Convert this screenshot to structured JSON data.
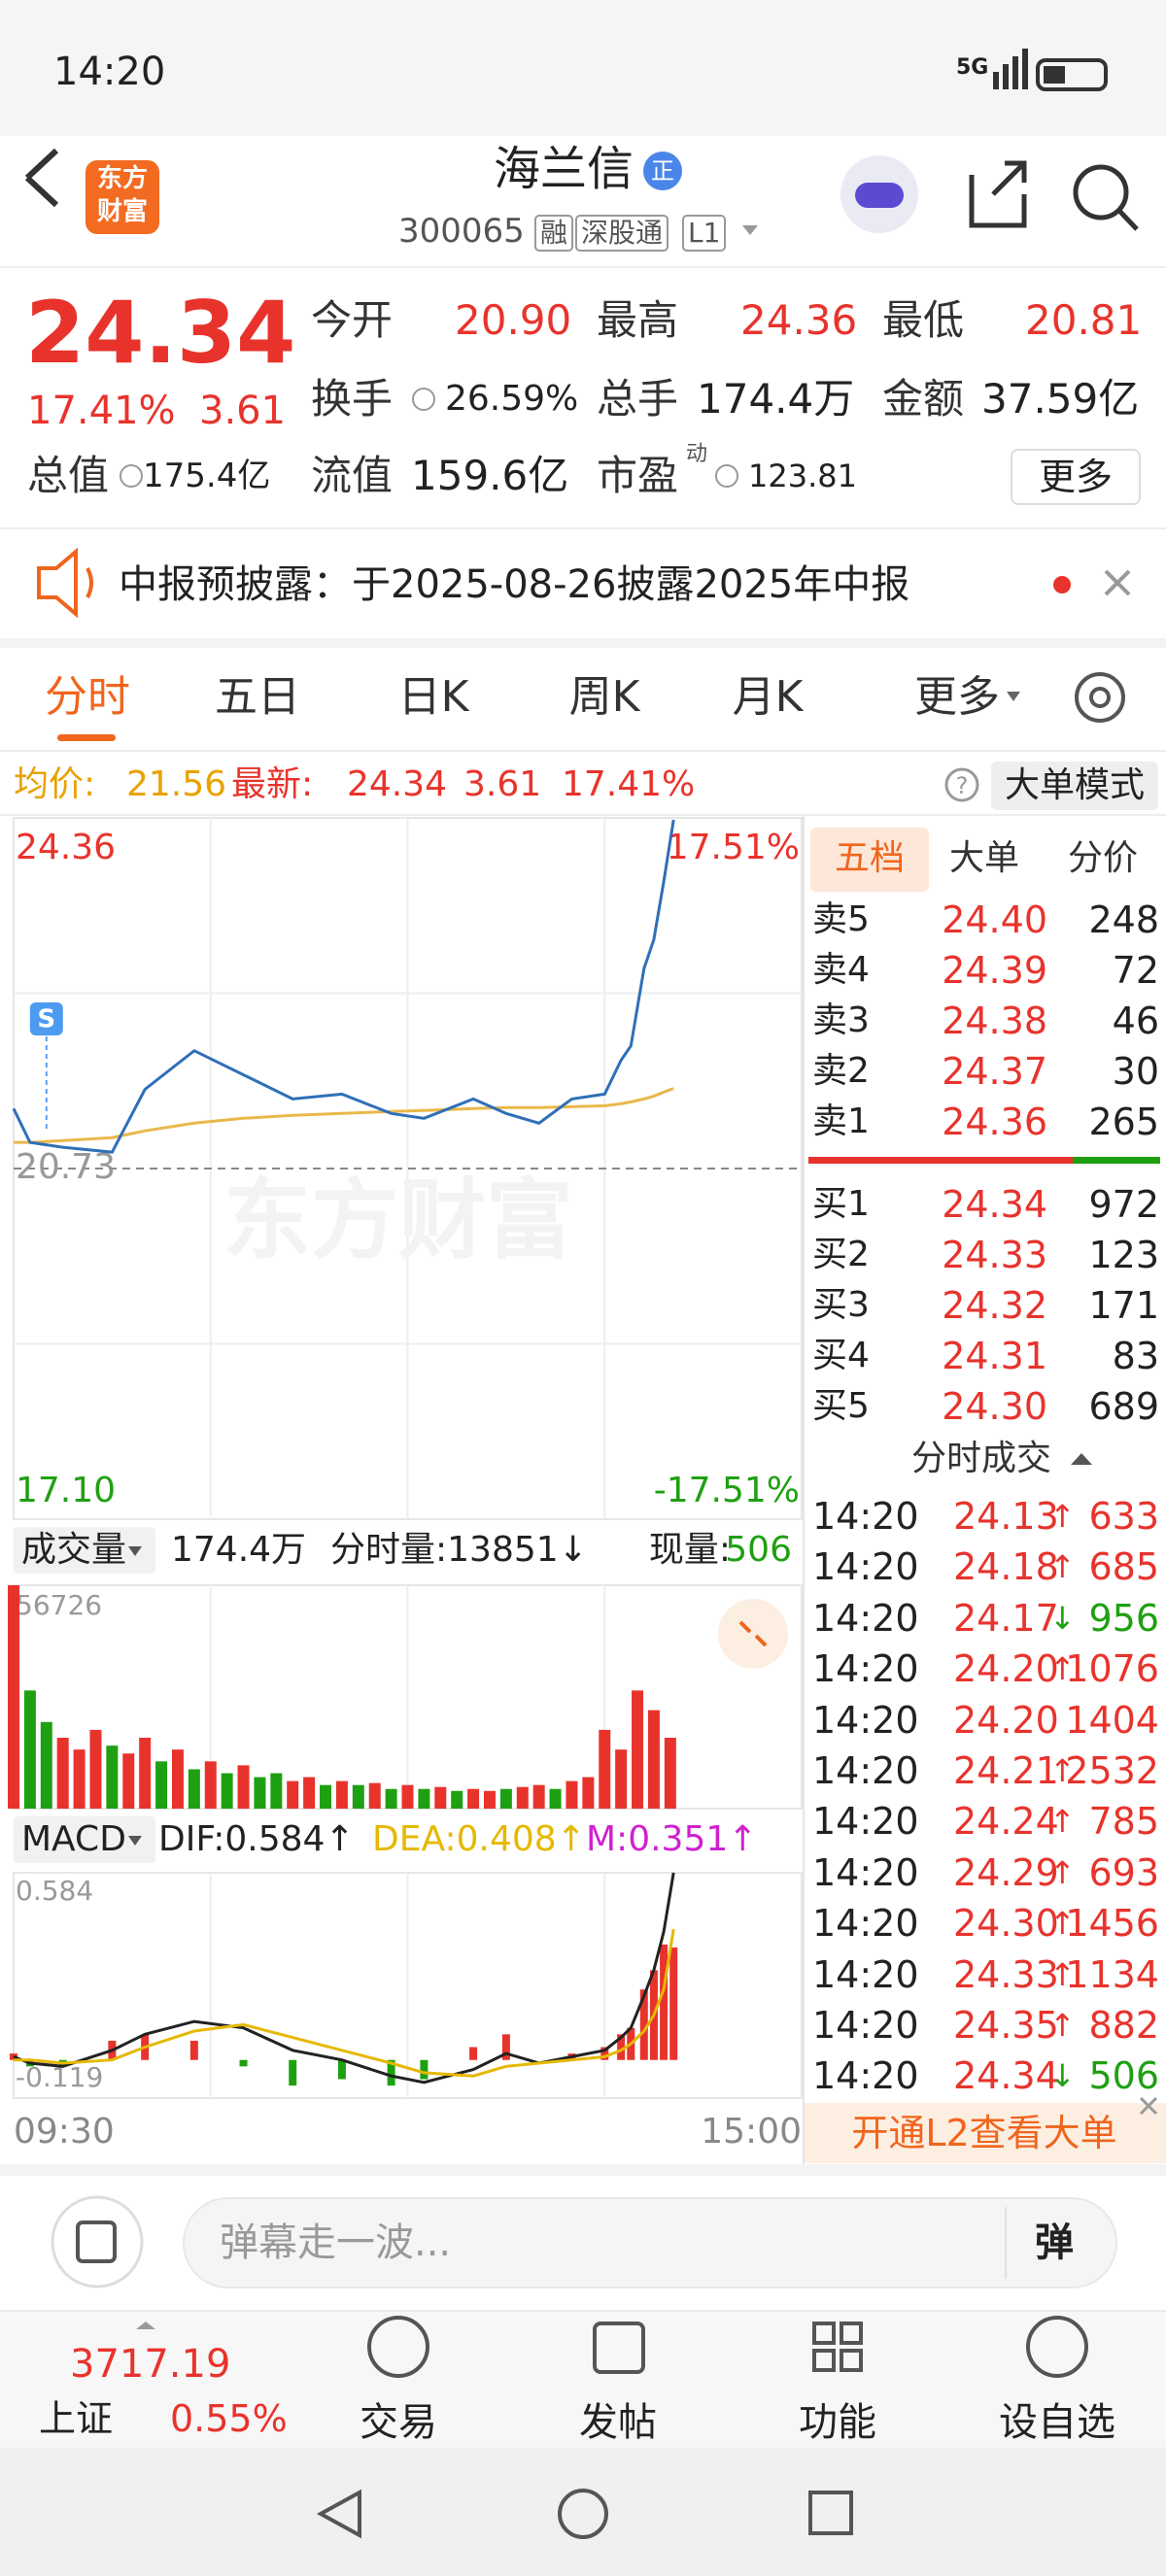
{
  "status_bar": {
    "time": "14:20",
    "network": "5G"
  },
  "header": {
    "logo": [
      "东方",
      "财富"
    ],
    "title": "海兰信",
    "title_badge": "正",
    "code": "300065",
    "badges": [
      "融",
      "深股通",
      "L1"
    ]
  },
  "quote": {
    "price": "24.34",
    "change_pct": "17.41%",
    "change": "3.61",
    "fields": [
      {
        "label": "今开",
        "value": "20.90"
      },
      {
        "label": "最高",
        "value": "24.36"
      },
      {
        "label": "最低",
        "value": "20.81"
      },
      {
        "label": "换手",
        "value": "26.59%"
      },
      {
        "label": "总手",
        "value": "174.4万"
      },
      {
        "label": "金额",
        "value": "37.59亿"
      },
      {
        "label": "总值",
        "value": "175.4亿"
      },
      {
        "label": "流值",
        "value": "159.6亿"
      },
      {
        "label": "市盈",
        "value": "123.81",
        "superscript": "动"
      }
    ],
    "more": "更多"
  },
  "notice": {
    "text": "中报预披露：于2025-08-26披露2025年中报"
  },
  "tabs": [
    "分时",
    "五日",
    "日K",
    "周K",
    "月K",
    "更多"
  ],
  "info_bar": {
    "avg_label": "均价:",
    "avg": "21.56",
    "latest_label": "最新:",
    "latest": "24.34",
    "change": "3.61",
    "change_pct": "17.41%",
    "help": "?",
    "mode": "大单模式"
  },
  "chart_data": [
    {
      "type": "line",
      "watermark": "东方财富",
      "x": [
        0,
        5,
        15,
        30,
        40,
        55,
        70,
        85,
        100,
        115,
        125,
        140,
        150,
        160,
        170,
        180,
        185,
        188,
        192,
        195,
        198,
        201
      ],
      "xlim": [
        0,
        240
      ],
      "xticks": [
        {
          "value": 0,
          "label": "09:30"
        },
        {
          "value": 240,
          "label": "15:00"
        }
      ],
      "ylim": [
        17.1,
        24.36
      ],
      "yticks": [
        24.36,
        20.73,
        {
          "value": 17.1,
          "label": "17.10"
        }
      ],
      "y2lim": [
        -17.51,
        17.51
      ],
      "y2ticks": [
        {
          "value": 17.51,
          "label": "17.51%"
        },
        {
          "value": -17.51,
          "label": "-17.51%"
        }
      ],
      "series": [
        {
          "color": "#2f6fb8",
          "values": [
            21.35,
            21.0,
            20.95,
            20.9,
            21.55,
            21.95,
            21.7,
            21.45,
            21.5,
            21.3,
            21.25,
            21.45,
            21.3,
            21.2,
            21.45,
            21.5,
            21.85,
            22.0,
            22.8,
            23.1,
            23.7,
            24.34
          ]
        },
        {
          "color": "#e9b84a",
          "values": [
            21.0,
            21.0,
            21.02,
            21.05,
            21.12,
            21.2,
            21.25,
            21.28,
            21.3,
            21.32,
            21.33,
            21.35,
            21.36,
            21.36,
            21.37,
            21.38,
            21.4,
            21.42,
            21.45,
            21.48,
            21.52,
            21.56
          ]
        }
      ],
      "annotations": [
        {
          "text": "S",
          "x": 10
        }
      ]
    },
    {
      "type": "bar",
      "header": {
        "label": "成交量",
        "total": "174.4万",
        "minute_volume": "分时量:13851↓",
        "current_label": "现量:",
        "current": "506"
      },
      "x": [
        0,
        5,
        10,
        15,
        20,
        25,
        30,
        35,
        40,
        45,
        50,
        55,
        60,
        65,
        70,
        75,
        80,
        85,
        90,
        95,
        100,
        105,
        110,
        115,
        120,
        125,
        130,
        135,
        140,
        145,
        150,
        155,
        160,
        165,
        170,
        175,
        180,
        185,
        190,
        195,
        200
      ],
      "xlim": [
        0,
        240
      ],
      "ylim": [
        0,
        56726
      ],
      "yticks": [
        56726
      ],
      "series": [
        {
          "color": "#e8332c",
          "values": [
            56726,
            null,
            null,
            18000,
            15000,
            20000,
            null,
            14000,
            18000,
            null,
            15000,
            null,
            12000,
            null,
            11000,
            null,
            null,
            7000,
            8000,
            null,
            7000,
            null,
            6500,
            null,
            6000,
            null,
            5500,
            null,
            5000,
            4500,
            null,
            5500,
            6000,
            null,
            7000,
            8000,
            20000,
            15000,
            30000,
            25000,
            18000
          ]
        },
        {
          "color": "#1fa012",
          "values": [
            null,
            30000,
            22000,
            null,
            null,
            null,
            16000,
            null,
            null,
            12000,
            null,
            10000,
            null,
            9000,
            null,
            8000,
            9000,
            null,
            null,
            6000,
            null,
            6000,
            null,
            5000,
            null,
            5000,
            null,
            4500,
            null,
            null,
            5000,
            null,
            null,
            5000,
            null,
            null,
            null,
            null,
            null,
            null,
            null
          ]
        }
      ]
    },
    {
      "type": "macd",
      "header": {
        "label": "MACD",
        "dif": "DIF:0.584↑",
        "dea": "DEA:0.408↑",
        "m": "M:0.351↑"
      },
      "x": [
        0,
        5,
        15,
        30,
        40,
        55,
        70,
        85,
        100,
        115,
        125,
        140,
        150,
        160,
        170,
        180,
        185,
        188,
        192,
        195,
        198,
        201
      ],
      "xlim": [
        0,
        240
      ],
      "ylim": [
        -0.119,
        0.584
      ],
      "yticks": [
        0.584,
        -0.119
      ],
      "series": [
        {
          "color": "#222222",
          "values": [
            0.01,
            -0.01,
            -0.02,
            0.03,
            0.08,
            0.12,
            0.1,
            0.03,
            0.0,
            -0.05,
            -0.07,
            -0.03,
            0.02,
            -0.01,
            0.01,
            0.03,
            0.07,
            0.1,
            0.2,
            0.28,
            0.4,
            0.584
          ]
        },
        {
          "color": "#e6b800",
          "values": [
            0.0,
            0.0,
            -0.01,
            0.0,
            0.04,
            0.09,
            0.11,
            0.07,
            0.03,
            -0.01,
            -0.04,
            -0.05,
            -0.02,
            -0.01,
            0.0,
            0.01,
            0.03,
            0.05,
            0.09,
            0.14,
            0.22,
            0.408
          ]
        },
        {
          "color": "#e8332c",
          "negative_color": "#1fa012",
          "values": [
            0.02,
            -0.02,
            -0.02,
            0.06,
            0.08,
            0.06,
            -0.02,
            -0.08,
            -0.06,
            -0.08,
            -0.06,
            0.04,
            0.08,
            0.0,
            0.02,
            0.04,
            0.08,
            0.1,
            0.22,
            0.28,
            0.36,
            0.351
          ]
        }
      ]
    }
  ],
  "order_book": {
    "tabs": [
      "五档",
      "大单",
      "分价"
    ],
    "asks": [
      {
        "label": "卖5",
        "price": "24.40",
        "volume": "248"
      },
      {
        "label": "卖4",
        "price": "24.39",
        "volume": "72"
      },
      {
        "label": "卖3",
        "price": "24.38",
        "volume": "46"
      },
      {
        "label": "卖2",
        "price": "24.37",
        "volume": "30"
      },
      {
        "label": "卖1",
        "price": "24.36",
        "volume": "265"
      }
    ],
    "bids": [
      {
        "label": "买1",
        "price": "24.34",
        "volume": "972"
      },
      {
        "label": "买2",
        "price": "24.33",
        "volume": "123"
      },
      {
        "label": "买3",
        "price": "24.32",
        "volume": "171"
      },
      {
        "label": "买4",
        "price": "24.31",
        "volume": "83"
      },
      {
        "label": "买5",
        "price": "24.30",
        "volume": "689"
      }
    ]
  },
  "trades": {
    "title": "分时成交",
    "rows": [
      {
        "time": "14:20",
        "price": "24.13",
        "arrow": "↑",
        "volume": "633"
      },
      {
        "time": "14:20",
        "price": "24.18",
        "arrow": "↑",
        "volume": "685"
      },
      {
        "time": "14:20",
        "price": "24.17",
        "arrow": "↓",
        "volume": "956"
      },
      {
        "time": "14:20",
        "price": "24.20",
        "arrow": "↑",
        "volume": "1076"
      },
      {
        "time": "14:20",
        "price": "24.20",
        "volume": "1404"
      },
      {
        "time": "14:20",
        "price": "24.21",
        "arrow": "↑",
        "volume": "2532"
      },
      {
        "time": "14:20",
        "price": "24.24",
        "arrow": "↑",
        "volume": "785"
      },
      {
        "time": "14:20",
        "price": "24.29",
        "arrow": "↑",
        "volume": "693"
      },
      {
        "time": "14:20",
        "price": "24.30",
        "arrow": "↑",
        "volume": "1456"
      },
      {
        "time": "14:20",
        "price": "24.33",
        "arrow": "↑",
        "volume": "1134"
      },
      {
        "time": "14:20",
        "price": "24.35",
        "arrow": "↑",
        "volume": "882"
      },
      {
        "time": "14:20",
        "price": "24.34",
        "arrow": "↓",
        "volume": "506"
      }
    ]
  },
  "l2_banner": "开通L2查看大单",
  "input": {
    "placeholder": "弹幕走一波...",
    "button": "弹"
  },
  "bottom_nav": {
    "index_value": "3717.19",
    "index_name": "上证",
    "index_change": "0.55%",
    "items": [
      "交易",
      "发帖",
      "功能",
      "设自选"
    ]
  }
}
